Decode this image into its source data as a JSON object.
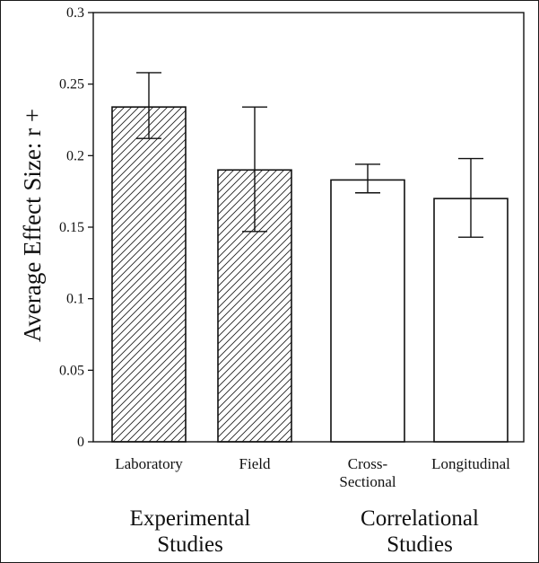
{
  "chart_data": {
    "type": "bar",
    "title": "",
    "xlabel": "",
    "ylabel": "Average Effect Size: r +",
    "ylim": [
      0,
      0.3
    ],
    "yticks": [
      0,
      0.05,
      0.1,
      0.15,
      0.2,
      0.25,
      0.3
    ],
    "ytick_labels": [
      "0",
      "0.05",
      "0.1",
      "0.15",
      "0.2",
      "0.25",
      "0.3"
    ],
    "grid": false,
    "categories": [
      {
        "label": [
          "Laboratory"
        ],
        "value": 0.234,
        "error_low": 0.212,
        "error_high": 0.258,
        "fill": "hatched"
      },
      {
        "label": [
          "Field"
        ],
        "value": 0.19,
        "error_low": 0.147,
        "error_high": 0.234,
        "fill": "hatched"
      },
      {
        "label": [
          "Cross-",
          "Sectional"
        ],
        "value": 0.183,
        "error_low": 0.174,
        "error_high": 0.194,
        "fill": "white"
      },
      {
        "label": [
          "Longitudinal"
        ],
        "value": 0.17,
        "error_low": 0.143,
        "error_high": 0.198,
        "fill": "white"
      }
    ],
    "groups": [
      {
        "label": [
          "Experimental",
          "Studies"
        ]
      },
      {
        "label": [
          "Correlational",
          "Studies"
        ]
      }
    ]
  }
}
